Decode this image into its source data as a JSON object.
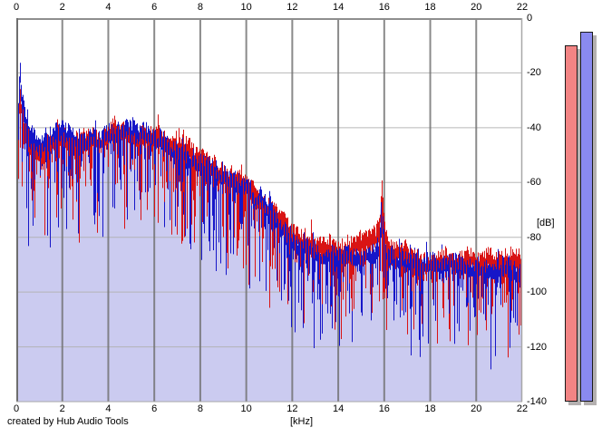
{
  "caption": "created by Hub Audio Tools",
  "axes": {
    "x_unit_label": "[kHz]",
    "y_unit_label": "[dB]"
  },
  "colors": {
    "trace_red": "#d91414",
    "trace_blue": "#1616c8",
    "fill": "#cbcbf0",
    "grid_vertical": "#6e6e6e",
    "grid_horizontal": "#b0b0b0",
    "frame_dark": "#6e6e6e",
    "frame_top": "#8e8e8e",
    "frame_light": "#a8a8a8",
    "meter_shadow": "#b4b0b0",
    "meter_outline": "#1a1a1a",
    "background": "#ffffff",
    "text": "#000000"
  },
  "chart_data": {
    "type": "line",
    "title": "",
    "xlabel": "[kHz]",
    "ylabel": "[dB]",
    "xlim": [
      0,
      22
    ],
    "ylim": [
      -140,
      0
    ],
    "x_ticks": [
      0,
      2,
      4,
      6,
      8,
      10,
      12,
      14,
      16,
      18,
      20,
      22
    ],
    "y_ticks": [
      0,
      -20,
      -40,
      -60,
      -80,
      -100,
      -120,
      -140
    ],
    "grid": true,
    "legend": "none",
    "description": "Dual-channel FFT audio spectrum, noisy traces; broad plateau near -43 dB from 1-6 kHz, roll-off to ~-85 dB by 13 kHz, narrow tone peak at 15.9 kHz reaching ~-62 dB, noise floor dips to -120 dB near 22 kHz",
    "series": [
      {
        "name": "red-channel-spectrum",
        "color_key": "trace_red",
        "envelope_x": [
          0,
          0.08,
          0.15,
          0.25,
          0.4,
          0.6,
          0.9,
          1.2,
          1.6,
          2,
          3,
          4,
          5,
          6,
          6.5,
          7,
          8,
          9,
          10,
          10.5,
          11,
          11.5,
          12,
          12.5,
          13,
          14,
          15,
          15.6,
          15.78,
          15.88,
          16.0,
          16.15,
          17,
          18,
          19,
          20,
          21,
          22
        ],
        "envelope_db": [
          -58,
          -36,
          -26,
          -33,
          -40,
          -44,
          -47,
          -46,
          -45,
          -44,
          -43,
          -43,
          -42,
          -43,
          -45,
          -47,
          -51,
          -55,
          -60,
          -64,
          -68,
          -74,
          -79,
          -82,
          -84,
          -85,
          -84,
          -83,
          -78,
          -61,
          -78,
          -84,
          -86,
          -87,
          -88,
          -89,
          -90,
          -91
        ]
      },
      {
        "name": "blue-channel-spectrum",
        "color_key": "trace_blue",
        "envelope_x": [
          0,
          0.08,
          0.15,
          0.25,
          0.4,
          0.6,
          0.9,
          1.2,
          1.6,
          2,
          3,
          4,
          5,
          6,
          6.5,
          7,
          8,
          9,
          10,
          10.5,
          11,
          11.5,
          12,
          12.5,
          13,
          14,
          15,
          15.6,
          15.78,
          15.88,
          16.0,
          16.15,
          17,
          18,
          19,
          20,
          21,
          22
        ],
        "envelope_db": [
          -55,
          -30,
          -18,
          -30,
          -38,
          -43,
          -46,
          -45,
          -44,
          -43,
          -43,
          -42,
          -42,
          -43,
          -45,
          -47,
          -51,
          -55,
          -60,
          -64,
          -68,
          -74,
          -79,
          -82,
          -84,
          -85,
          -85,
          -84,
          -80,
          -65,
          -80,
          -85,
          -86,
          -87,
          -88,
          -89,
          -90,
          -91
        ]
      }
    ],
    "noise_model": {
      "up_db": 4.5,
      "dip_base_db": 2.5,
      "dip_max_db": 34,
      "dip_exponent": 3.5,
      "wander_db": 3,
      "seeds": {
        "red": 101,
        "blue": 202
      }
    },
    "level_meters": [
      {
        "name": "left-level",
        "color": "#f28484",
        "value_db": -10
      },
      {
        "name": "right-level",
        "color": "#8a8af0",
        "value_db": -5
      }
    ]
  }
}
